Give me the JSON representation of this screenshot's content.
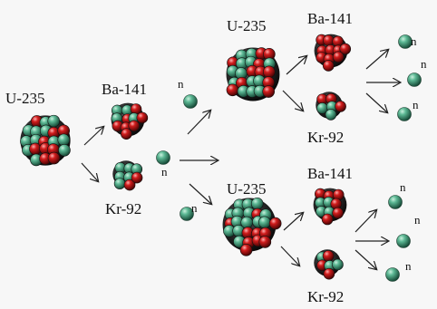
{
  "labels": {
    "u235_1": "U-235",
    "ba141_1": "Ba-141",
    "kr92_1": "Kr-92",
    "n1": "n",
    "n2": "n",
    "n3": "n",
    "u235_2": "U-235",
    "ba141_2": "Ba-141",
    "kr92_2": "Kr-92",
    "n4": "n",
    "n5": "n",
    "n6": "n",
    "u235_3": "U-235",
    "ba141_3": "Ba-141",
    "kr92_3": "Kr-92",
    "n7": "n",
    "n8": "n",
    "n9": "n"
  },
  "colors": {
    "neutron": "#3c9a78",
    "proton": "#c01818",
    "background": "#f7f7f7",
    "arrow": "#222222"
  }
}
